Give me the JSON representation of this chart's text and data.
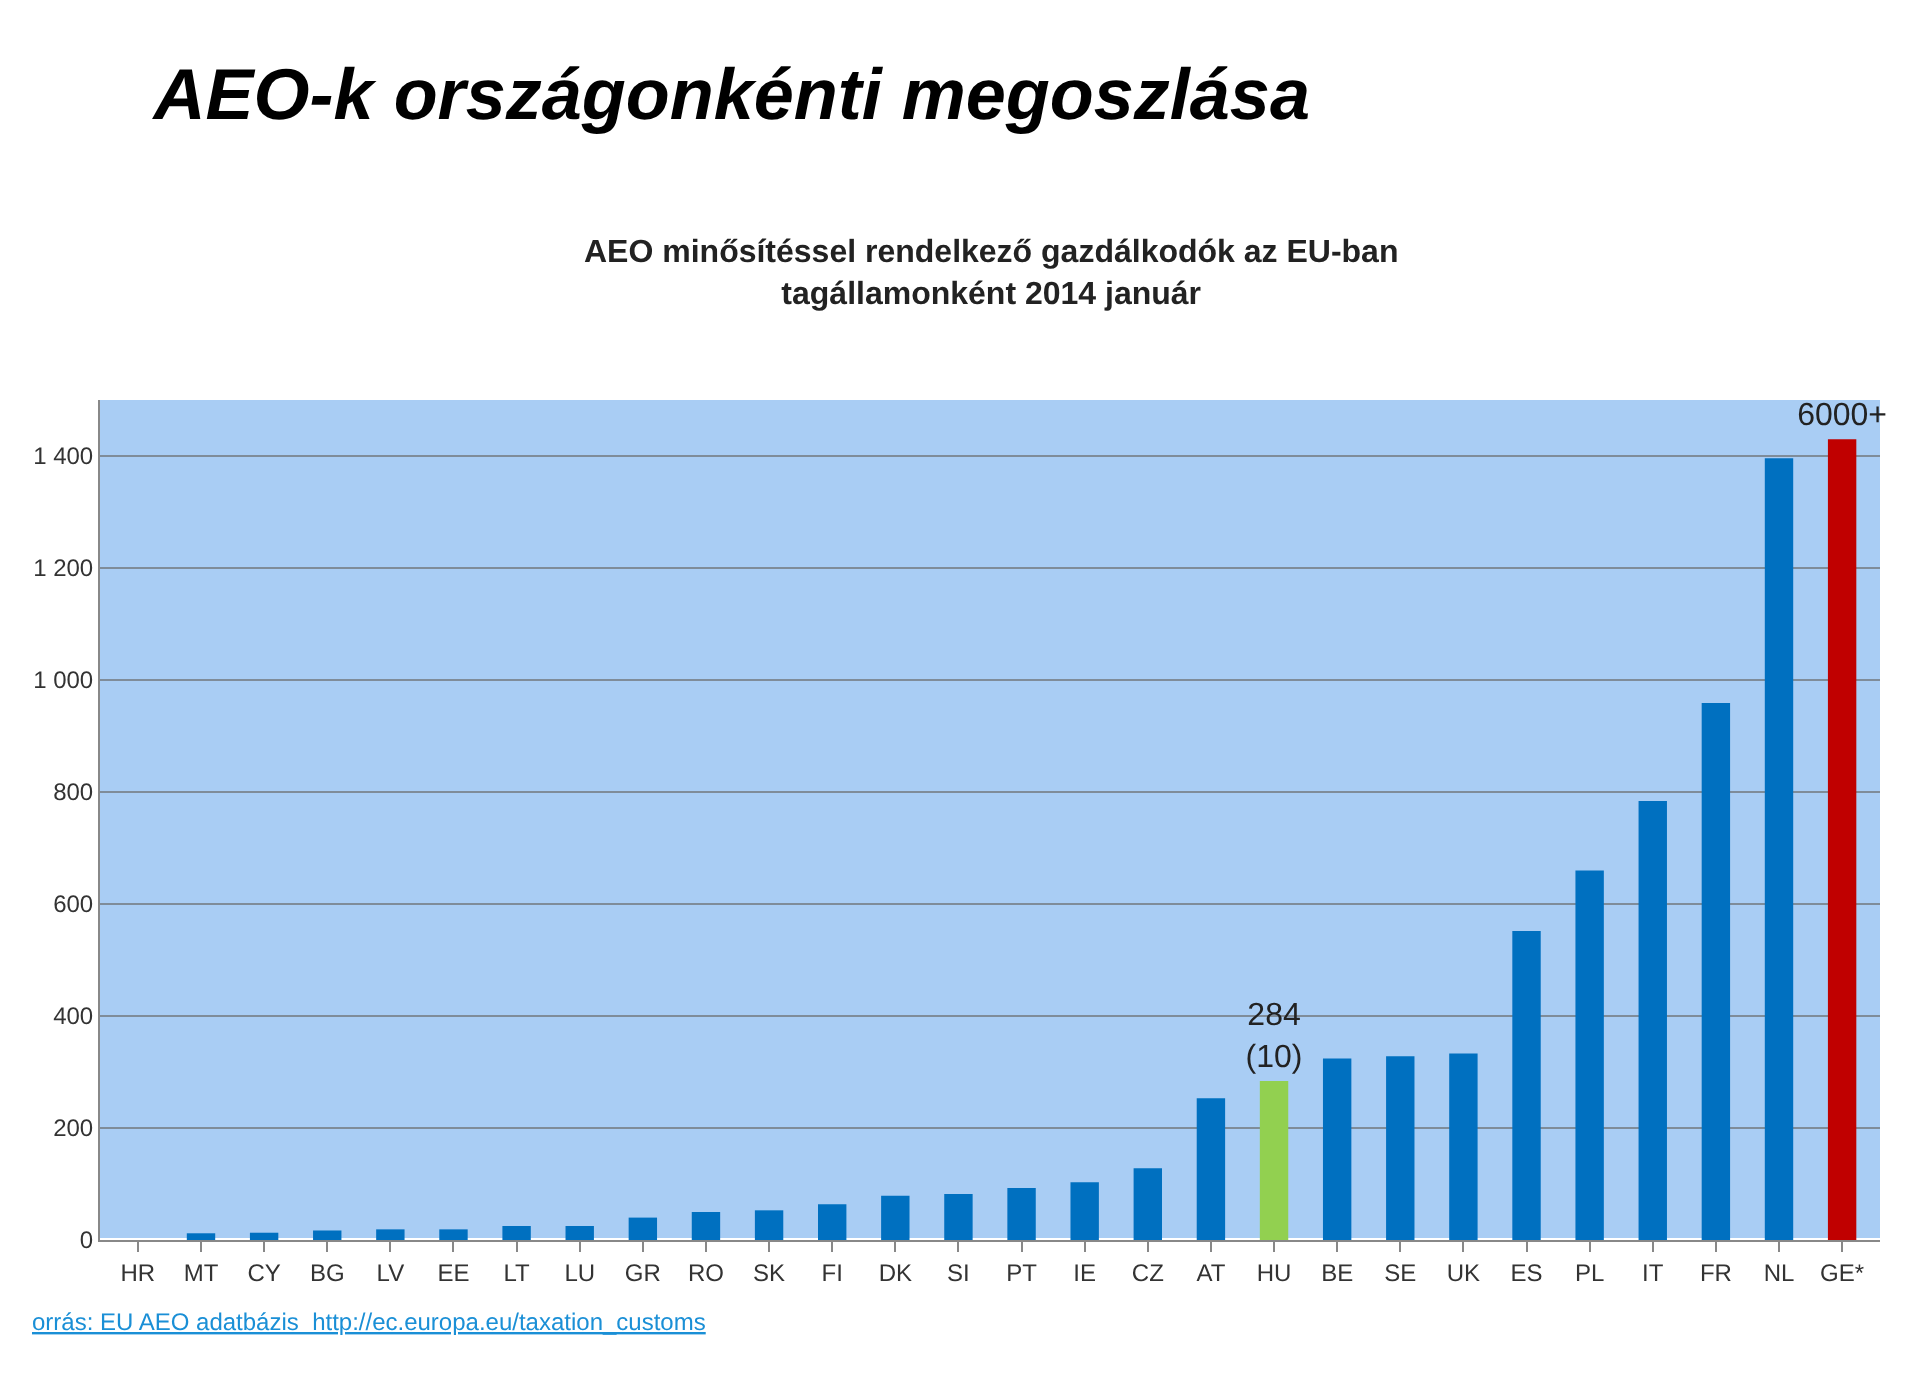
{
  "chart_data": {
    "type": "bar",
    "title": "AEO-k országonkénti megoszlása",
    "subtitle": "AEO minősítéssel rendelkező gazdálkodók az EU-ban\ntagállamonként 2014 január",
    "categories": [
      "HR",
      "MT",
      "CY",
      "BG",
      "LV",
      "EE",
      "LT",
      "LU",
      "GR",
      "RO",
      "SK",
      "FI",
      "DK",
      "SI",
      "PT",
      "IE",
      "CZ",
      "AT",
      "HU",
      "BE",
      "SE",
      "UK",
      "ES",
      "PL",
      "IT",
      "FR",
      "NL",
      "GE*"
    ],
    "values": [
      0,
      12,
      13,
      17,
      19,
      19,
      25,
      25,
      40,
      50,
      53,
      64,
      79,
      82,
      93,
      103,
      128,
      253,
      284,
      324,
      328,
      333,
      552,
      660,
      784,
      959,
      1396,
      1430
    ],
    "colors": [
      "#0070c0",
      "#0070c0",
      "#0070c0",
      "#0070c0",
      "#0070c0",
      "#0070c0",
      "#0070c0",
      "#0070c0",
      "#0070c0",
      "#0070c0",
      "#0070c0",
      "#0070c0",
      "#0070c0",
      "#0070c0",
      "#0070c0",
      "#0070c0",
      "#0070c0",
      "#0070c0",
      "#92d050",
      "#0070c0",
      "#0070c0",
      "#0070c0",
      "#0070c0",
      "#0070c0",
      "#0070c0",
      "#0070c0",
      "#0070c0",
      "#c00000"
    ],
    "value_labels": [
      null,
      null,
      null,
      null,
      null,
      null,
      null,
      null,
      null,
      null,
      null,
      null,
      null,
      null,
      null,
      null,
      null,
      null,
      "284\n(10)",
      null,
      null,
      null,
      null,
      null,
      null,
      null,
      null,
      "6000+"
    ],
    "ylim": [
      0,
      1500
    ],
    "yticks": [
      0,
      {
        "value": 200,
        "label": "200"
      },
      {
        "value": 400,
        "label": "400"
      },
      {
        "value": 600,
        "label": "600"
      },
      {
        "value": 800,
        "label": "800"
      },
      {
        "value": 1000,
        "label": "1 000"
      },
      {
        "value": 1200,
        "label": "1 200"
      },
      {
        "value": 1400,
        "label": "1 400"
      }
    ],
    "grid": "y",
    "annotations": [
      "orrás: EU AEO adatbázis  http://ec.europa.eu/taxation_customs"
    ]
  }
}
